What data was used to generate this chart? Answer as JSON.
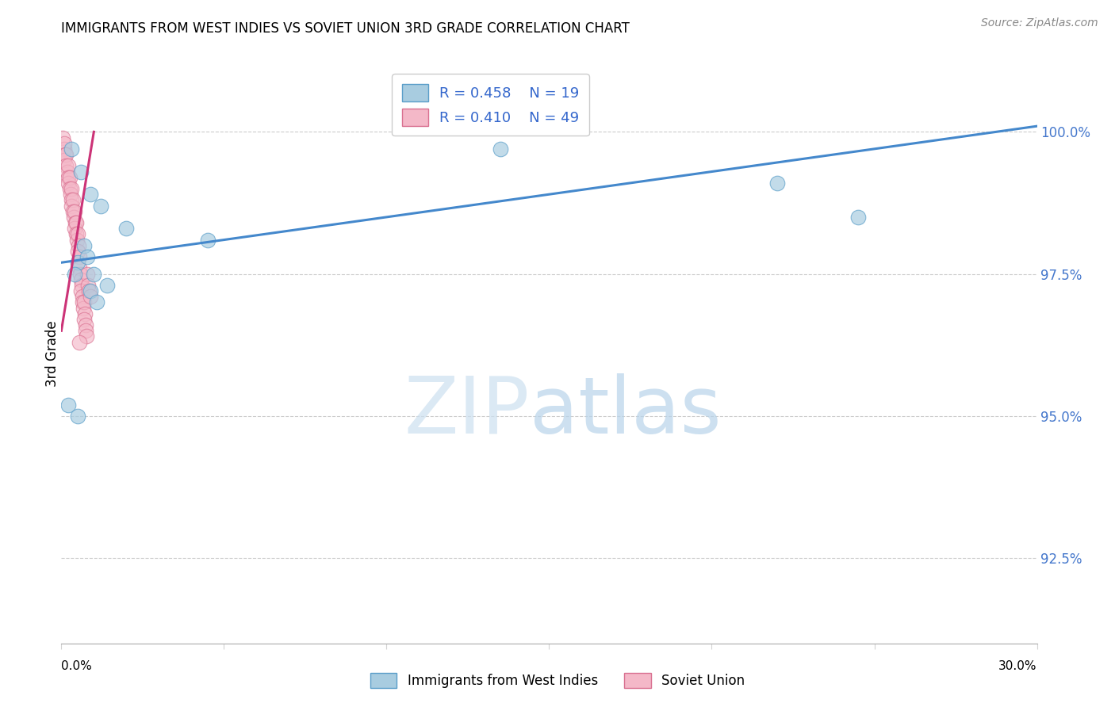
{
  "title": "IMMIGRANTS FROM WEST INDIES VS SOVIET UNION 3RD GRADE CORRELATION CHART",
  "source": "Source: ZipAtlas.com",
  "ylabel": "3rd Grade",
  "ytick_values": [
    92.5,
    95.0,
    97.5,
    100.0
  ],
  "xlim": [
    0.0,
    30.0
  ],
  "ylim": [
    91.0,
    101.2
  ],
  "legend_blue_r": "R = 0.458",
  "legend_blue_n": "N = 19",
  "legend_pink_r": "R = 0.410",
  "legend_pink_n": "N = 49",
  "blue_color": "#a8cce0",
  "blue_edge_color": "#5a9ec9",
  "pink_color": "#f4b8c8",
  "pink_edge_color": "#d97090",
  "trend_blue_color": "#4488cc",
  "trend_pink_color": "#cc3377",
  "blue_scatter_x": [
    0.3,
    0.6,
    0.9,
    0.5,
    1.2,
    0.4,
    0.7,
    2.0,
    0.8,
    4.5,
    1.0,
    1.4,
    0.2,
    0.5,
    13.5,
    22.0,
    24.5,
    0.9,
    1.1
  ],
  "blue_scatter_y": [
    99.7,
    99.3,
    98.9,
    97.7,
    98.7,
    97.5,
    98.0,
    98.3,
    97.8,
    98.1,
    97.5,
    97.3,
    95.2,
    95.0,
    99.7,
    99.1,
    98.5,
    97.2,
    97.0
  ],
  "pink_scatter_x": [
    0.05,
    0.08,
    0.1,
    0.12,
    0.1,
    0.15,
    0.15,
    0.18,
    0.2,
    0.22,
    0.2,
    0.25,
    0.25,
    0.28,
    0.3,
    0.32,
    0.3,
    0.35,
    0.35,
    0.38,
    0.4,
    0.42,
    0.4,
    0.45,
    0.45,
    0.48,
    0.5,
    0.52,
    0.5,
    0.55,
    0.55,
    0.58,
    0.6,
    0.62,
    0.6,
    0.65,
    0.65,
    0.68,
    0.7,
    0.72,
    0.7,
    0.75,
    0.75,
    0.78,
    0.8,
    0.82,
    0.85,
    0.9,
    0.55
  ],
  "pink_scatter_y": [
    99.9,
    99.7,
    99.8,
    99.6,
    99.5,
    99.6,
    99.4,
    99.3,
    99.4,
    99.2,
    99.1,
    99.2,
    99.0,
    98.9,
    99.0,
    98.8,
    98.7,
    98.8,
    98.6,
    98.5,
    98.6,
    98.4,
    98.3,
    98.4,
    98.2,
    98.1,
    98.2,
    98.0,
    97.9,
    97.8,
    97.6,
    97.5,
    97.4,
    97.3,
    97.2,
    97.1,
    97.0,
    96.9,
    97.0,
    96.8,
    96.7,
    96.6,
    96.5,
    96.4,
    97.5,
    97.3,
    97.2,
    97.1,
    96.3
  ],
  "blue_trend_x": [
    0.0,
    30.0
  ],
  "blue_trend_y": [
    97.7,
    100.1
  ],
  "pink_trend_x": [
    0.0,
    1.0
  ],
  "pink_trend_y": [
    96.5,
    100.0
  ],
  "watermark_zip_color": "#cce0f0",
  "watermark_atlas_color": "#b8d4ea"
}
